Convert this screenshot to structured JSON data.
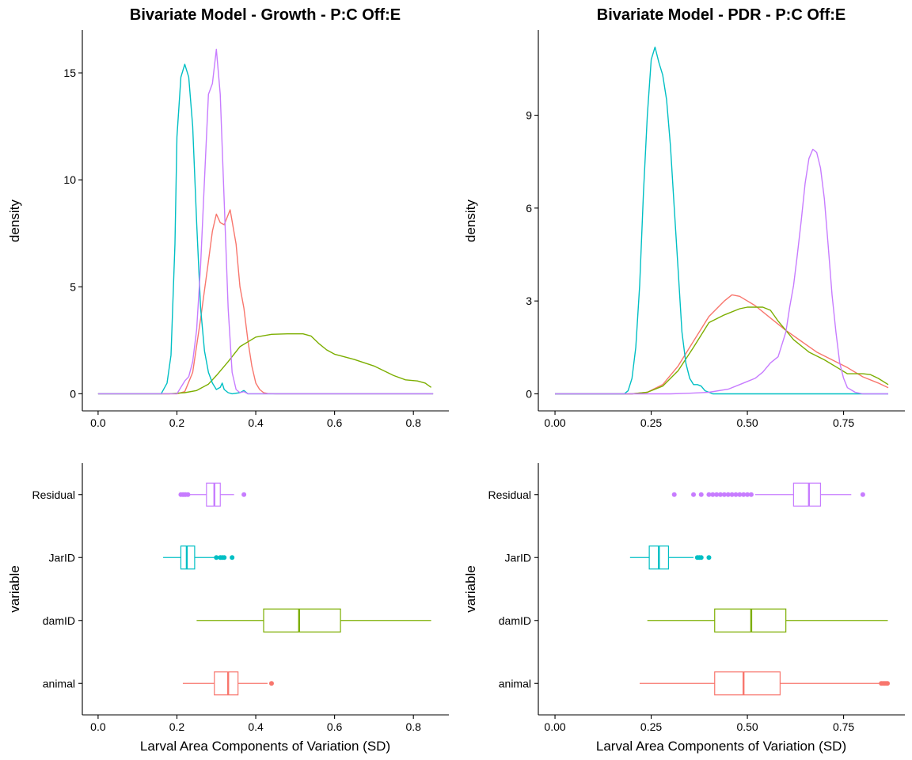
{
  "colors": {
    "animal": "#F8766D",
    "damID": "#7CAE00",
    "JarID": "#00BFC4",
    "Residual": "#C77CFF"
  },
  "chart_data": [
    {
      "id": "growth-density",
      "type": "line",
      "title": "Bivariate Model - Growth - P:C Off:E",
      "xlabel": "",
      "ylabel": "density",
      "xlim": [
        -0.04,
        0.89
      ],
      "ylim": [
        -0.8,
        17.0
      ],
      "xticks": [
        0.0,
        0.2,
        0.4,
        0.6,
        0.8
      ],
      "xtick_labels": [
        "0.0",
        "0.2",
        "0.4",
        "0.6",
        "0.8"
      ],
      "yticks": [
        0,
        5,
        10,
        15
      ],
      "ytick_labels": [
        "0",
        "5",
        "10",
        "15"
      ],
      "grid": false,
      "series": [
        {
          "key": "animal",
          "x": [
            0.0,
            0.2,
            0.22,
            0.24,
            0.26,
            0.28,
            0.29,
            0.3,
            0.31,
            0.32,
            0.335,
            0.35,
            0.36,
            0.37,
            0.38,
            0.39,
            0.4,
            0.41,
            0.42,
            0.43,
            0.45,
            0.85
          ],
          "y": [
            0,
            0,
            0.1,
            1.0,
            3.5,
            6.2,
            7.6,
            8.4,
            8.0,
            7.9,
            8.6,
            7.0,
            5.0,
            4.0,
            2.5,
            1.3,
            0.5,
            0.2,
            0.05,
            0.01,
            0,
            0
          ]
        },
        {
          "key": "damID",
          "x": [
            0.0,
            0.18,
            0.22,
            0.25,
            0.28,
            0.3,
            0.33,
            0.36,
            0.4,
            0.44,
            0.48,
            0.52,
            0.54,
            0.56,
            0.58,
            0.6,
            0.62,
            0.65,
            0.7,
            0.75,
            0.78,
            0.81,
            0.83,
            0.845
          ],
          "y": [
            0,
            0,
            0.05,
            0.15,
            0.45,
            0.85,
            1.5,
            2.2,
            2.65,
            2.78,
            2.8,
            2.8,
            2.7,
            2.35,
            2.05,
            1.85,
            1.75,
            1.6,
            1.3,
            0.85,
            0.65,
            0.6,
            0.5,
            0.3
          ]
        },
        {
          "key": "JarID",
          "x": [
            0.0,
            0.16,
            0.175,
            0.185,
            0.195,
            0.2,
            0.21,
            0.22,
            0.23,
            0.24,
            0.25,
            0.26,
            0.27,
            0.28,
            0.29,
            0.3,
            0.31,
            0.315,
            0.32,
            0.33,
            0.34,
            0.36,
            0.37,
            0.38,
            0.85
          ],
          "y": [
            0,
            0,
            0.5,
            1.8,
            7.0,
            12.0,
            14.8,
            15.4,
            14.8,
            12.5,
            8.0,
            4.0,
            2.0,
            1.0,
            0.5,
            0.2,
            0.3,
            0.5,
            0.2,
            0.05,
            0,
            0.05,
            0.15,
            0,
            0
          ]
        },
        {
          "key": "Residual",
          "x": [
            0.0,
            0.2,
            0.22,
            0.23,
            0.24,
            0.25,
            0.26,
            0.27,
            0.28,
            0.29,
            0.3,
            0.31,
            0.32,
            0.33,
            0.34,
            0.35,
            0.36,
            0.37,
            0.38,
            0.85
          ],
          "y": [
            0,
            0,
            0.6,
            0.8,
            1.5,
            3.0,
            6.0,
            10.0,
            14.0,
            14.5,
            16.1,
            14.0,
            9.0,
            4.0,
            1.0,
            0.2,
            0.05,
            0.1,
            0,
            0
          ]
        }
      ]
    },
    {
      "id": "pdr-density",
      "type": "line",
      "title": "Bivariate Model - PDR - P:C Off:E",
      "xlabel": "",
      "ylabel": "density",
      "xlim": [
        -0.0433,
        0.9093
      ],
      "ylim": [
        -0.55,
        11.75
      ],
      "xticks": [
        0.0,
        0.25,
        0.5,
        0.75
      ],
      "xtick_labels": [
        "0.00",
        "0.25",
        "0.50",
        "0.75"
      ],
      "yticks": [
        0,
        3,
        6,
        9
      ],
      "ytick_labels": [
        "0",
        "3",
        "6",
        "9"
      ],
      "grid": false,
      "series": [
        {
          "key": "animal",
          "x": [
            0.0,
            0.2,
            0.24,
            0.28,
            0.32,
            0.36,
            0.4,
            0.44,
            0.46,
            0.48,
            0.52,
            0.56,
            0.6,
            0.64,
            0.68,
            0.72,
            0.76,
            0.8,
            0.84,
            0.866
          ],
          "y": [
            0,
            0,
            0.05,
            0.3,
            0.9,
            1.7,
            2.5,
            3.0,
            3.2,
            3.15,
            2.85,
            2.45,
            2.05,
            1.7,
            1.35,
            1.1,
            0.85,
            0.55,
            0.35,
            0.2
          ]
        },
        {
          "key": "damID",
          "x": [
            0.0,
            0.2,
            0.24,
            0.28,
            0.32,
            0.36,
            0.4,
            0.44,
            0.48,
            0.5,
            0.54,
            0.56,
            0.58,
            0.62,
            0.66,
            0.7,
            0.74,
            0.76,
            0.78,
            0.8,
            0.82,
            0.84,
            0.866
          ],
          "y": [
            0,
            0,
            0.05,
            0.25,
            0.75,
            1.5,
            2.3,
            2.55,
            2.75,
            2.8,
            2.8,
            2.7,
            2.35,
            1.75,
            1.35,
            1.1,
            0.8,
            0.65,
            0.65,
            0.65,
            0.62,
            0.5,
            0.3
          ]
        },
        {
          "key": "JarID",
          "x": [
            0.0,
            0.18,
            0.19,
            0.2,
            0.21,
            0.22,
            0.23,
            0.24,
            0.25,
            0.26,
            0.27,
            0.28,
            0.29,
            0.3,
            0.31,
            0.32,
            0.33,
            0.34,
            0.35,
            0.36,
            0.37,
            0.38,
            0.39,
            0.4,
            0.41,
            0.866
          ],
          "y": [
            0,
            0,
            0.1,
            0.5,
            1.5,
            3.5,
            6.5,
            9.0,
            10.8,
            11.2,
            10.7,
            10.3,
            9.5,
            8.0,
            6.0,
            4.0,
            2.0,
            1.0,
            0.5,
            0.3,
            0.3,
            0.25,
            0.1,
            0.05,
            0,
            0
          ]
        },
        {
          "key": "Residual",
          "x": [
            0.0,
            0.3,
            0.35,
            0.4,
            0.45,
            0.48,
            0.5,
            0.52,
            0.54,
            0.56,
            0.58,
            0.6,
            0.61,
            0.62,
            0.63,
            0.64,
            0.65,
            0.66,
            0.67,
            0.68,
            0.69,
            0.7,
            0.71,
            0.72,
            0.73,
            0.74,
            0.75,
            0.76,
            0.78,
            0.8,
            0.866
          ],
          "y": [
            0,
            0,
            0.02,
            0.05,
            0.15,
            0.3,
            0.4,
            0.5,
            0.7,
            1.0,
            1.2,
            2.0,
            2.8,
            3.5,
            4.5,
            5.6,
            6.8,
            7.6,
            7.9,
            7.8,
            7.3,
            6.3,
            4.8,
            3.2,
            2.0,
            1.0,
            0.5,
            0.2,
            0.05,
            0,
            0
          ]
        }
      ]
    },
    {
      "id": "growth-box",
      "type": "box",
      "title": "",
      "xlabel": "Larval Area Components of Variation (SD)",
      "ylabel": "variable",
      "xlim": [
        -0.04,
        0.89
      ],
      "xticks": [
        0.0,
        0.2,
        0.4,
        0.6,
        0.8
      ],
      "xtick_labels": [
        "0.0",
        "0.2",
        "0.4",
        "0.6",
        "0.8"
      ],
      "categories": [
        "Residual",
        "JarID",
        "damID",
        "animal"
      ],
      "grid": false,
      "boxes": [
        {
          "key": "Residual",
          "whisker_low": 0.215,
          "q1": 0.275,
          "median": 0.295,
          "q3": 0.31,
          "whisker_high": 0.345,
          "outliers": [
            0.21,
            0.215,
            0.218,
            0.222,
            0.228,
            0.37
          ]
        },
        {
          "key": "JarID",
          "whisker_low": 0.165,
          "q1": 0.21,
          "median": 0.225,
          "q3": 0.245,
          "whisker_high": 0.295,
          "outliers": [
            0.3,
            0.31,
            0.315,
            0.32,
            0.34
          ]
        },
        {
          "key": "damID",
          "whisker_low": 0.25,
          "q1": 0.42,
          "median": 0.51,
          "q3": 0.615,
          "whisker_high": 0.845,
          "outliers": []
        },
        {
          "key": "animal",
          "whisker_low": 0.215,
          "q1": 0.295,
          "median": 0.33,
          "q3": 0.355,
          "whisker_high": 0.43,
          "outliers": [
            0.44
          ]
        }
      ]
    },
    {
      "id": "pdr-box",
      "type": "box",
      "title": "",
      "xlabel": "Larval Area Components of Variation (SD)",
      "ylabel": "variable",
      "xlim": [
        -0.0433,
        0.9093
      ],
      "xticks": [
        0.0,
        0.25,
        0.5,
        0.75
      ],
      "xtick_labels": [
        "0.00",
        "0.25",
        "0.50",
        "0.75"
      ],
      "categories": [
        "Residual",
        "JarID",
        "damID",
        "animal"
      ],
      "grid": false,
      "boxes": [
        {
          "key": "Residual",
          "whisker_low": 0.52,
          "q1": 0.62,
          "median": 0.66,
          "q3": 0.69,
          "whisker_high": 0.77,
          "outliers": [
            0.31,
            0.36,
            0.38,
            0.4,
            0.41,
            0.42,
            0.43,
            0.44,
            0.45,
            0.46,
            0.47,
            0.48,
            0.49,
            0.5,
            0.51,
            0.8
          ]
        },
        {
          "key": "JarID",
          "whisker_low": 0.195,
          "q1": 0.245,
          "median": 0.27,
          "q3": 0.295,
          "whisker_high": 0.36,
          "outliers": [
            0.37,
            0.375,
            0.38,
            0.4
          ]
        },
        {
          "key": "damID",
          "whisker_low": 0.24,
          "q1": 0.415,
          "median": 0.51,
          "q3": 0.6,
          "whisker_high": 0.865,
          "outliers": []
        },
        {
          "key": "animal",
          "whisker_low": 0.22,
          "q1": 0.415,
          "median": 0.49,
          "q3": 0.585,
          "whisker_high": 0.845,
          "outliers": [
            0.848,
            0.852,
            0.856,
            0.86,
            0.864
          ]
        }
      ]
    }
  ]
}
